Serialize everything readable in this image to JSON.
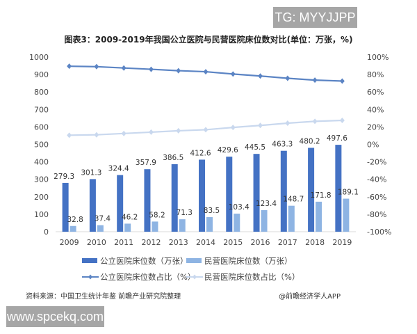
{
  "watermark_top": "TG: MYYJJPP",
  "watermark_bottom": "www.spcekq.com",
  "source": "资料来源：中国卫生统计年鉴 前瞻产业研究院整理",
  "credit": "@前瞻经济学人APP",
  "chart_data": {
    "type": "bar",
    "title": "图表3：2009-2019年我国公立医院与民营医院床位数对比(单位：万张，%)",
    "categories": [
      "2009",
      "2010",
      "2011",
      "2012",
      "2013",
      "2014",
      "2015",
      "2016",
      "2017",
      "2018",
      "2019"
    ],
    "ylim": [
      0,
      1000
    ],
    "yticks": [
      "0",
      "100",
      "200",
      "300",
      "400",
      "500",
      "600",
      "700",
      "800",
      "900",
      "1000"
    ],
    "y2lim": [
      -100,
      100
    ],
    "y2ticks": [
      "-100%",
      "-80%",
      "-60%",
      "-40%",
      "-20%",
      "0%",
      "20%",
      "40%",
      "60%",
      "80%",
      "100%"
    ],
    "grid": false,
    "legend_placement": "bottom",
    "series": [
      {
        "name": "公立医院床位数（万张）",
        "kind": "bar",
        "axis": "left",
        "color": "#4472c4",
        "values": [
          279.3,
          301.3,
          324.4,
          357.9,
          386.5,
          412.6,
          429.6,
          445.5,
          463.3,
          480.2,
          497.6
        ],
        "labels": [
          "279.3",
          "301.3",
          "324.4",
          "357.9",
          "386.5",
          "412.6",
          "429.6",
          "445.5",
          "463.3",
          "480.2",
          "497.6"
        ]
      },
      {
        "name": "民营医院床位数（万张）",
        "kind": "bar",
        "axis": "left",
        "color": "#8eb4e3",
        "values": [
          32.8,
          37.4,
          46.2,
          58.2,
          71.3,
          83.5,
          103.4,
          123.4,
          148.7,
          171.8,
          189.1
        ],
        "labels": [
          "32.8",
          "37.4",
          "46.2",
          "58.2",
          "71.3",
          "83.5",
          "103.4",
          "123.4",
          "148.7",
          "171.8",
          "189.1"
        ]
      },
      {
        "name": "公立医院床位数占比（%）",
        "kind": "line",
        "axis": "right",
        "color": "#5b84c4",
        "values": [
          89.5,
          89.0,
          87.5,
          86.0,
          84.4,
          83.2,
          80.6,
          78.3,
          75.7,
          73.6,
          72.5
        ]
      },
      {
        "name": "民营医院床位数占比（%）",
        "kind": "line",
        "axis": "right",
        "color": "#c9d8ee",
        "values": [
          10.5,
          11.0,
          12.5,
          14.0,
          15.6,
          16.8,
          19.4,
          21.7,
          24.3,
          26.4,
          27.5
        ]
      }
    ]
  }
}
